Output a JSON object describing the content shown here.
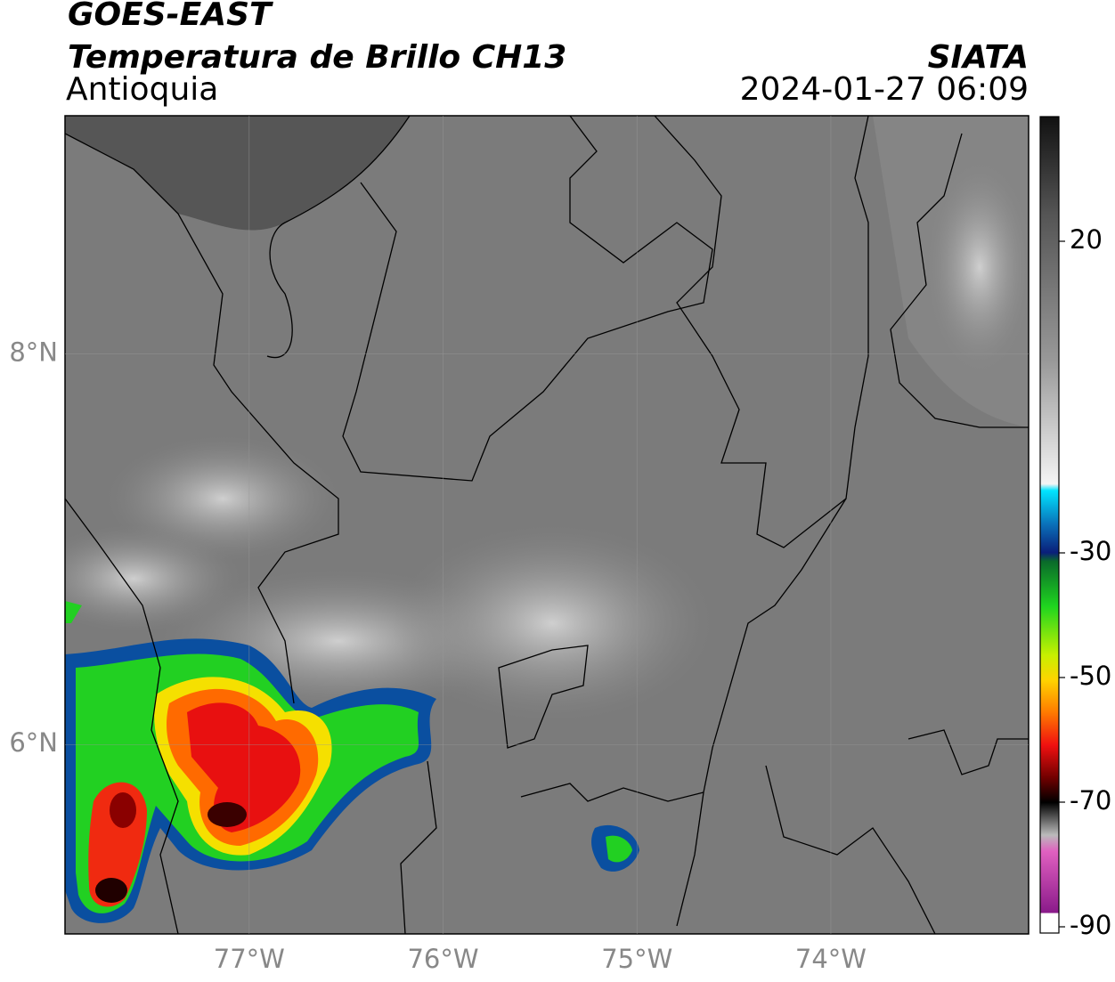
{
  "header": {
    "title": "GOES-EAST",
    "subtitle": "Temperatura de Brillo CH13",
    "region": "Antioquia",
    "source": "SIATA",
    "datetime": "2024-01-27 06:09"
  },
  "map": {
    "lonlim": [
      -77.95,
      -72.98
    ],
    "latlim": [
      5.03,
      9.22
    ],
    "lonticks": [
      {
        "value": -77,
        "label": "77°W"
      },
      {
        "value": -76,
        "label": "76°W"
      },
      {
        "value": -75,
        "label": "75°W"
      },
      {
        "value": -74,
        "label": "74°W"
      }
    ],
    "latticks": [
      {
        "value": 6,
        "label": "6°N"
      },
      {
        "value": 8,
        "label": "8°N"
      }
    ],
    "grid": true
  },
  "colorbar": {
    "lim": [
      -91,
      40
    ],
    "ticks": [
      20,
      -30,
      -50,
      -70,
      -90
    ]
  }
}
